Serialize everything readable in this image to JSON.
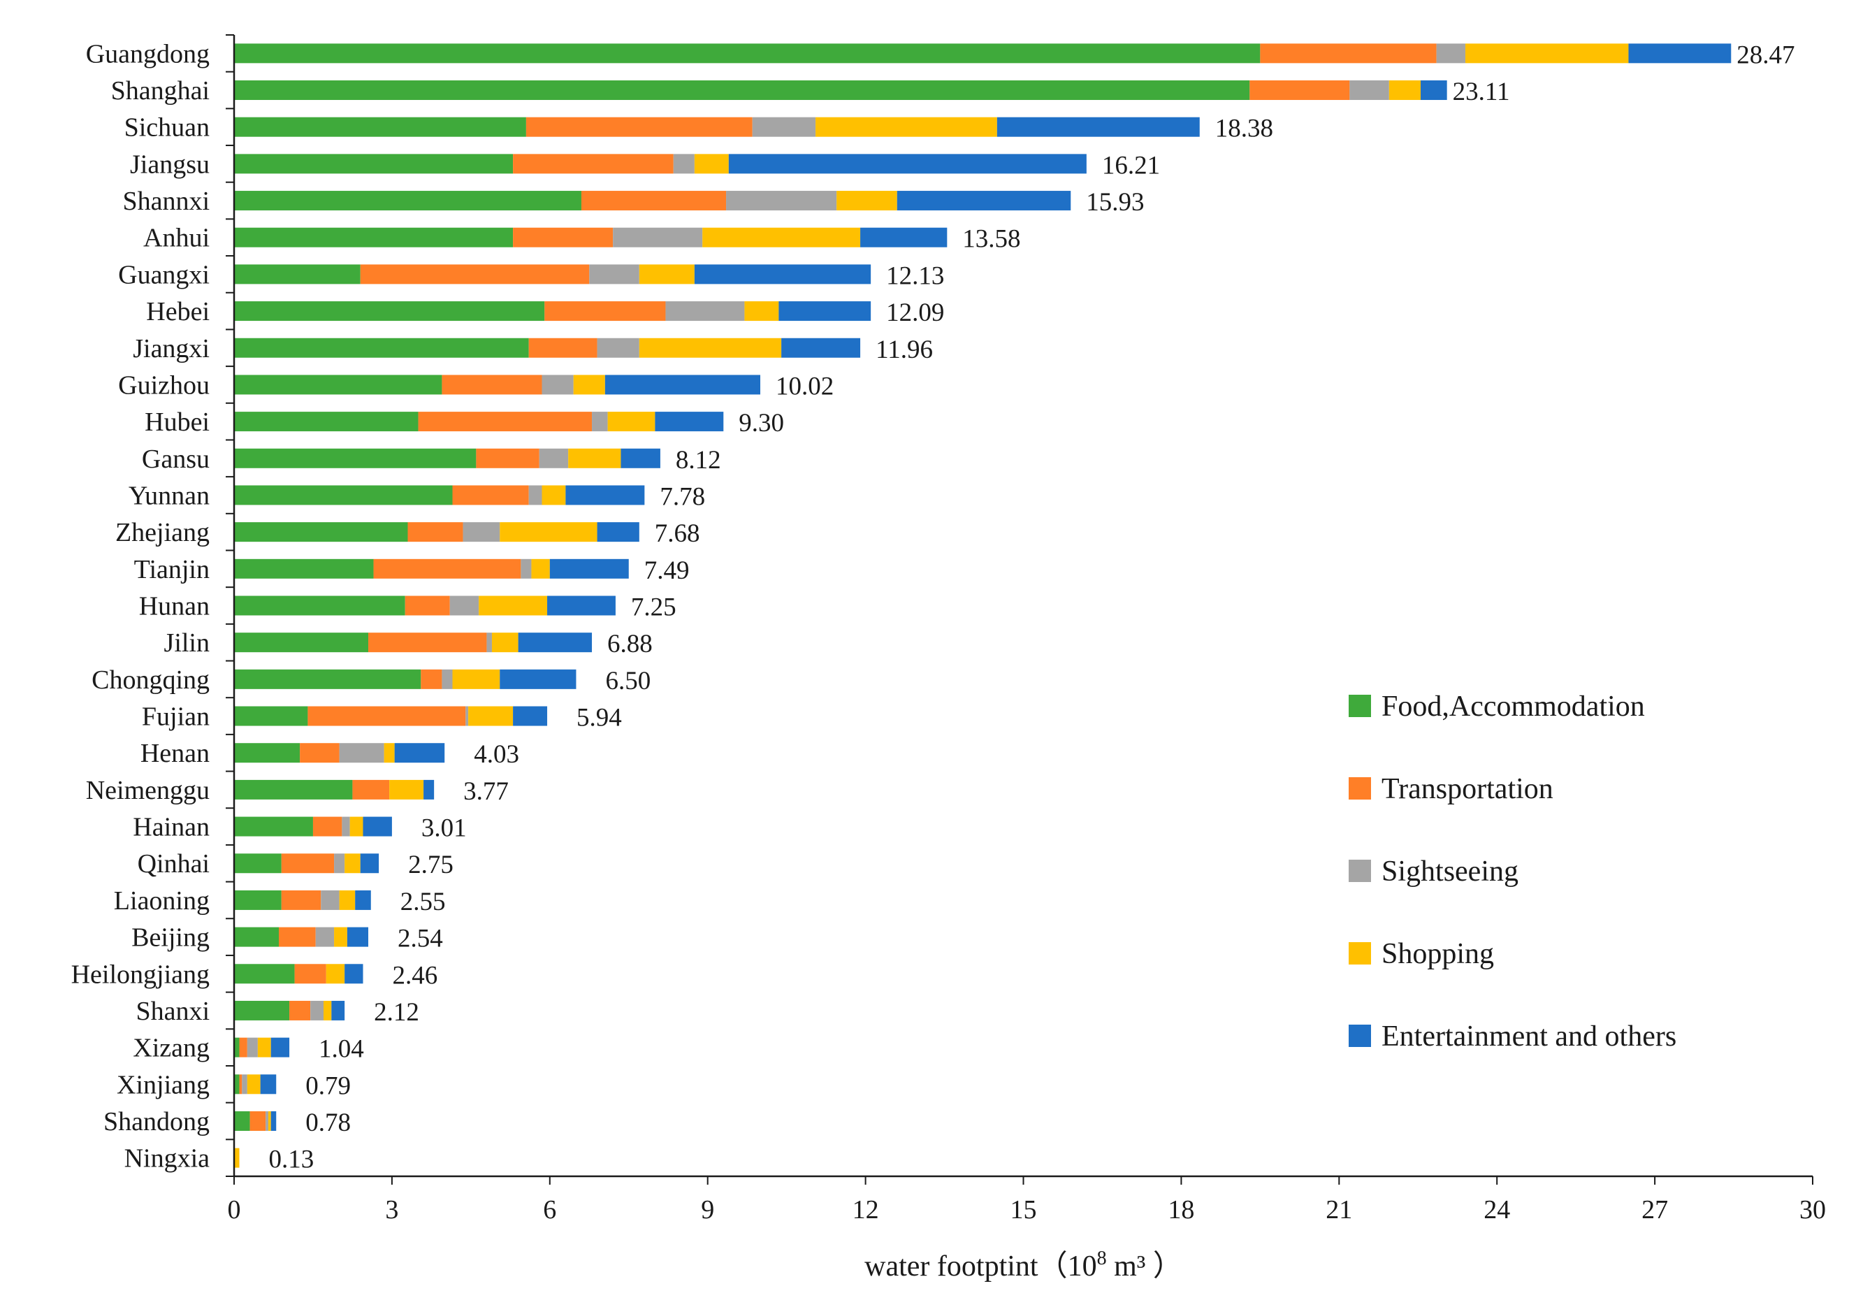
{
  "chart_data": {
    "type": "bar",
    "orientation": "horizontal",
    "stacked": true,
    "title": "",
    "xlabel": "water footptint（10",
    "xlabel_sup": "8",
    "xlabel_unit": " m³ ）",
    "ylabel": "",
    "xlim": [
      0,
      30
    ],
    "xticks": [
      "0",
      "3",
      "6",
      "9",
      "12",
      "15",
      "18",
      "21",
      "24",
      "27",
      "30"
    ],
    "grid": false,
    "legend_position": "right",
    "categories": [
      "Guangdong",
      "Shanghai",
      "Sichuan",
      "Jiangsu",
      "Shannxi",
      "Anhui",
      "Guangxi",
      "Hebei",
      "Jiangxi",
      "Guizhou",
      "Hubei",
      "Gansu",
      "Yunnan",
      "Zhejiang",
      "Tianjin",
      "Hunan",
      "Jilin",
      "Chongqing",
      "Fujian",
      "Henan",
      "Neimenggu",
      "Hainan",
      "Qinhai",
      "Liaoning",
      "Beijing",
      "Heilongjiang",
      "Shanxi",
      "Xizang",
      "Xinjiang",
      "Shandong",
      "Ningxia"
    ],
    "totals": [
      "28.47",
      "23.11",
      "18.38",
      "16.21",
      "15.93",
      "13.58",
      "12.13",
      "12.09",
      "11.96",
      "10.02",
      "9.30",
      "8.12",
      "7.78",
      "7.68",
      "7.49",
      "7.25",
      "6.88",
      "6.50",
      "5.94",
      "4.03",
      "3.77",
      "3.01",
      "2.75",
      "2.55",
      "2.54",
      "2.46",
      "2.12",
      "1.04",
      "0.79",
      "0.78",
      "0.13"
    ],
    "series": [
      {
        "name": "Food,Accommodation",
        "color": "#3faa3b",
        "values": [
          19.5,
          19.3,
          5.55,
          5.3,
          6.6,
          5.3,
          2.4,
          5.9,
          5.6,
          3.95,
          3.5,
          4.6,
          4.15,
          3.3,
          2.65,
          3.25,
          2.55,
          3.55,
          1.4,
          1.25,
          2.25,
          1.5,
          0.9,
          0.9,
          0.85,
          1.15,
          1.05,
          0.1,
          0.1,
          0.3,
          0.0
        ]
      },
      {
        "name": "Transportation",
        "color": "#ff7f27",
        "values": [
          3.35,
          1.9,
          4.3,
          3.05,
          2.75,
          1.9,
          4.35,
          2.3,
          1.3,
          1.9,
          3.3,
          1.2,
          1.45,
          1.05,
          2.8,
          0.85,
          2.25,
          0.4,
          3.0,
          0.75,
          0.7,
          0.55,
          1.0,
          0.75,
          0.7,
          0.6,
          0.4,
          0.15,
          0.05,
          0.3,
          0.0
        ]
      },
      {
        "name": "Sightseeing",
        "color": "#a5a5a5",
        "values": [
          0.55,
          0.75,
          1.2,
          0.4,
          2.1,
          1.7,
          0.95,
          1.5,
          0.8,
          0.6,
          0.3,
          0.55,
          0.25,
          0.7,
          0.2,
          0.55,
          0.1,
          0.2,
          0.05,
          0.85,
          0.0,
          0.15,
          0.2,
          0.35,
          0.35,
          0.0,
          0.25,
          0.2,
          0.1,
          0.05,
          0.0
        ]
      },
      {
        "name": "Shopping",
        "color": "#ffc000",
        "values": [
          3.1,
          0.6,
          3.45,
          0.65,
          1.15,
          3.0,
          1.05,
          0.65,
          2.7,
          0.6,
          0.9,
          1.0,
          0.45,
          1.85,
          0.35,
          1.3,
          0.5,
          0.9,
          0.85,
          0.2,
          0.65,
          0.25,
          0.3,
          0.3,
          0.25,
          0.35,
          0.15,
          0.25,
          0.25,
          0.05,
          0.1
        ]
      },
      {
        "name": "Entertainment and others",
        "color": "#1f70c6",
        "values": [
          1.95,
          0.5,
          3.85,
          6.8,
          3.3,
          1.65,
          3.35,
          1.75,
          1.5,
          2.95,
          1.3,
          0.75,
          1.5,
          0.8,
          1.5,
          1.3,
          1.4,
          1.45,
          0.65,
          0.95,
          0.2,
          0.55,
          0.35,
          0.3,
          0.4,
          0.35,
          0.25,
          0.35,
          0.3,
          0.1,
          0.0
        ]
      }
    ]
  }
}
